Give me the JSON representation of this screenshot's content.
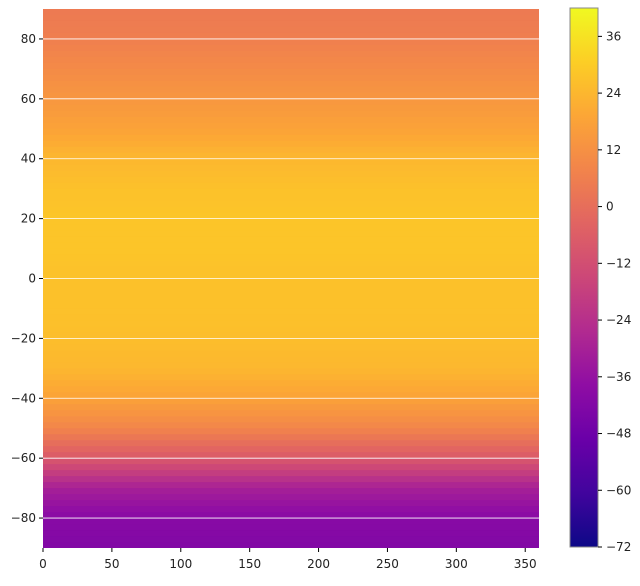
{
  "chart_data": {
    "type": "heatmap",
    "title": "",
    "xlabel": "",
    "ylabel": "",
    "xlim": [
      0,
      360
    ],
    "ylim": [
      -90,
      90
    ],
    "x_ticks": [
      0,
      50,
      100,
      150,
      200,
      250,
      300,
      350
    ],
    "y_ticks": [
      -80,
      -60,
      -40,
      -20,
      0,
      20,
      40,
      60,
      80
    ],
    "grid": "horizontal lines at y ticks",
    "colormap": "plasma",
    "colorbar": {
      "placement": "right",
      "range": [
        -72,
        42
      ],
      "ticks": [
        -72,
        -60,
        -48,
        -36,
        -24,
        -12,
        0,
        12,
        24,
        36
      ]
    },
    "latitude_profile": [
      {
        "lat": 90,
        "value": 4
      },
      {
        "lat": 80,
        "value": 6
      },
      {
        "lat": 70,
        "value": 10
      },
      {
        "lat": 60,
        "value": 14
      },
      {
        "lat": 50,
        "value": 18
      },
      {
        "lat": 40,
        "value": 24
      },
      {
        "lat": 30,
        "value": 27
      },
      {
        "lat": 20,
        "value": 28
      },
      {
        "lat": 10,
        "value": 28
      },
      {
        "lat": 0,
        "value": 27
      },
      {
        "lat": -10,
        "value": 27
      },
      {
        "lat": -20,
        "value": 26
      },
      {
        "lat": -30,
        "value": 24
      },
      {
        "lat": -40,
        "value": 18
      },
      {
        "lat": -50,
        "value": 8
      },
      {
        "lat": -60,
        "value": -8
      },
      {
        "lat": -70,
        "value": -30
      },
      {
        "lat": -80,
        "value": -40
      },
      {
        "lat": -90,
        "value": -42
      }
    ]
  },
  "colors": {
    "grid": "#ffffff",
    "axis": "#000000",
    "colorbar_border": "#888888"
  }
}
